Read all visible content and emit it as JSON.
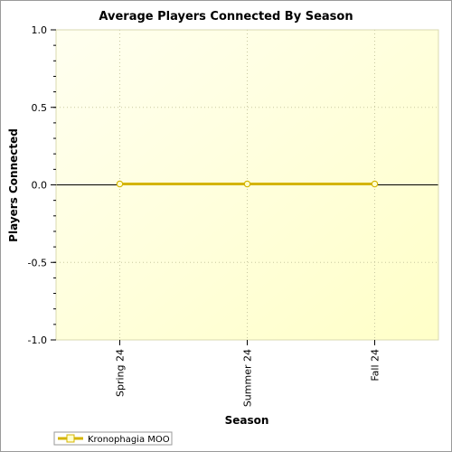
{
  "chart_data": {
    "type": "line",
    "title": "Average Players Connected By Season",
    "xlabel": "Season",
    "ylabel": "Players Connected",
    "categories": [
      "Spring 24",
      "Summer 24",
      "Fall 24"
    ],
    "ylim": [
      -1.0,
      1.0
    ],
    "yticks": [
      "1.0",
      "0.5",
      "0.0",
      "-0.5",
      "-1.0"
    ],
    "series": [
      {
        "name": "Kronophagia MOO",
        "values": [
          0,
          0,
          0
        ]
      }
    ],
    "grid": true,
    "legend_position": "bottom-left",
    "colors": {
      "series_line": "#d4b400",
      "series_marker_fill": "#ffffcc",
      "plot_bg_start": "#fffff0",
      "plot_bg_end": "#ffffc8",
      "grid": "#c8c8a0"
    }
  }
}
